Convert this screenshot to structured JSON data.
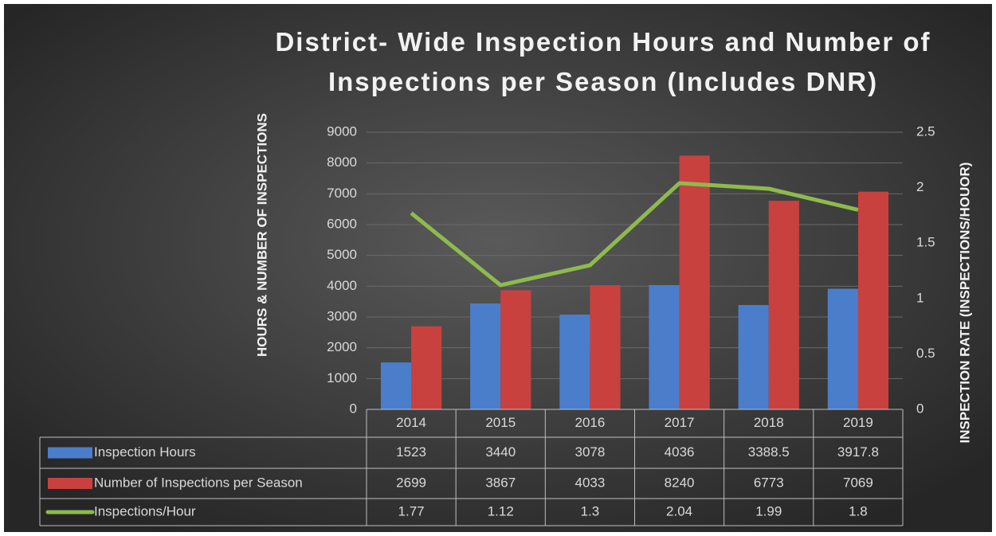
{
  "chart_data": {
    "type": "bar",
    "title": "District- Wide Inspection Hours and Number of Inspections per Season (Includes DNR)",
    "y_label": "HOURS & NUMBER OF INSPECTIONS",
    "y2_label": "INSPECTION RATE (INSPECTIONS/HOUOR)",
    "categories": [
      "2014",
      "2015",
      "2016",
      "2017",
      "2018",
      "2019"
    ],
    "series": [
      {
        "name": "Inspection Hours",
        "type": "bar",
        "color": "#4a7ecb",
        "values": [
          1523,
          3440,
          3078,
          4036,
          3388.5,
          3917.8
        ]
      },
      {
        "name": "Number of Inspections per Season",
        "type": "bar",
        "color": "#c8413f",
        "values": [
          2699,
          3867,
          4033,
          8240,
          6773,
          7069
        ]
      },
      {
        "name": "Inspections/Hour",
        "type": "line",
        "axis": "y2",
        "color": "#8dbb4c",
        "values": [
          1.77,
          1.12,
          1.3,
          2.04,
          1.99,
          1.8
        ]
      }
    ],
    "ylim": [
      0,
      9000
    ],
    "yticks": [
      0,
      1000,
      2000,
      3000,
      4000,
      5000,
      6000,
      7000,
      8000,
      9000
    ],
    "y2lim": [
      0,
      2.5
    ],
    "y2ticks": [
      0,
      0.5,
      1,
      1.5,
      2,
      2.5
    ],
    "grid": true,
    "data_table": true
  }
}
